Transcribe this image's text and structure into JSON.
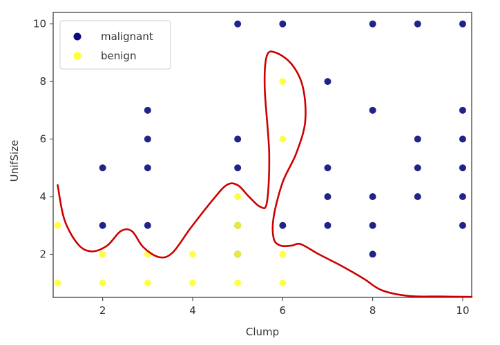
{
  "chart_data": {
    "type": "scatter",
    "xlabel": "Clump",
    "ylabel": "UnifSize",
    "xlim": [
      0.9,
      10.2
    ],
    "ylim": [
      0.5,
      10.4
    ],
    "x_ticks": [
      2,
      4,
      6,
      8,
      10
    ],
    "y_ticks": [
      2,
      4,
      6,
      8,
      10
    ],
    "legend_position": "top-left",
    "series": [
      {
        "name": "malignant",
        "color": "#0a0a7e",
        "points": [
          [
            5,
            10
          ],
          [
            6,
            10
          ],
          [
            8,
            10
          ],
          [
            9,
            10
          ],
          [
            10,
            10
          ],
          [
            7,
            8
          ],
          [
            3,
            7
          ],
          [
            8,
            7
          ],
          [
            10,
            7
          ],
          [
            3,
            6
          ],
          [
            5,
            6
          ],
          [
            9,
            6
          ],
          [
            10,
            6
          ],
          [
            2,
            5
          ],
          [
            3,
            5
          ],
          [
            5,
            5
          ],
          [
            7,
            5
          ],
          [
            9,
            5
          ],
          [
            10,
            5
          ],
          [
            7,
            4
          ],
          [
            8,
            4
          ],
          [
            9,
            4
          ],
          [
            10,
            4
          ],
          [
            2,
            3
          ],
          [
            3,
            3
          ],
          [
            5,
            3
          ],
          [
            6,
            3
          ],
          [
            7,
            3
          ],
          [
            8,
            3
          ],
          [
            10,
            3
          ],
          [
            5,
            2
          ],
          [
            8,
            2
          ]
        ]
      },
      {
        "name": "benign",
        "color": "#ffff33",
        "points": [
          [
            6,
            8
          ],
          [
            6,
            6
          ],
          [
            5,
            4
          ],
          [
            1,
            3
          ],
          [
            5,
            3
          ],
          [
            2,
            2
          ],
          [
            3,
            2
          ],
          [
            4,
            2
          ],
          [
            5,
            2
          ],
          [
            6,
            2
          ],
          [
            1,
            1
          ],
          [
            2,
            1
          ],
          [
            3,
            1
          ],
          [
            4,
            1
          ],
          [
            5,
            1
          ],
          [
            6,
            1
          ]
        ]
      }
    ],
    "boundary": {
      "color": "#cc0000",
      "points": [
        [
          1.0,
          4.4
        ],
        [
          1.15,
          3.2
        ],
        [
          1.45,
          2.35
        ],
        [
          1.75,
          2.1
        ],
        [
          2.1,
          2.3
        ],
        [
          2.4,
          2.8
        ],
        [
          2.65,
          2.8
        ],
        [
          2.9,
          2.25
        ],
        [
          3.25,
          1.9
        ],
        [
          3.55,
          2.05
        ],
        [
          3.95,
          2.9
        ],
        [
          4.4,
          3.8
        ],
        [
          4.75,
          4.4
        ],
        [
          5.0,
          4.4
        ],
        [
          5.25,
          4.0
        ],
        [
          5.5,
          3.65
        ],
        [
          5.65,
          3.8
        ],
        [
          5.7,
          5.5
        ],
        [
          5.6,
          7.8
        ],
        [
          5.65,
          8.9
        ],
        [
          5.85,
          9.0
        ],
        [
          6.2,
          8.6
        ],
        [
          6.45,
          7.8
        ],
        [
          6.5,
          6.6
        ],
        [
          6.3,
          5.5
        ],
        [
          6.0,
          4.5
        ],
        [
          5.8,
          3.3
        ],
        [
          5.8,
          2.55
        ],
        [
          5.95,
          2.3
        ],
        [
          6.2,
          2.3
        ],
        [
          6.4,
          2.35
        ],
        [
          6.8,
          2.0
        ],
        [
          7.3,
          1.6
        ],
        [
          7.8,
          1.15
        ],
        [
          8.2,
          0.75
        ],
        [
          8.8,
          0.55
        ],
        [
          9.5,
          0.53
        ],
        [
          10.2,
          0.52
        ]
      ]
    }
  }
}
